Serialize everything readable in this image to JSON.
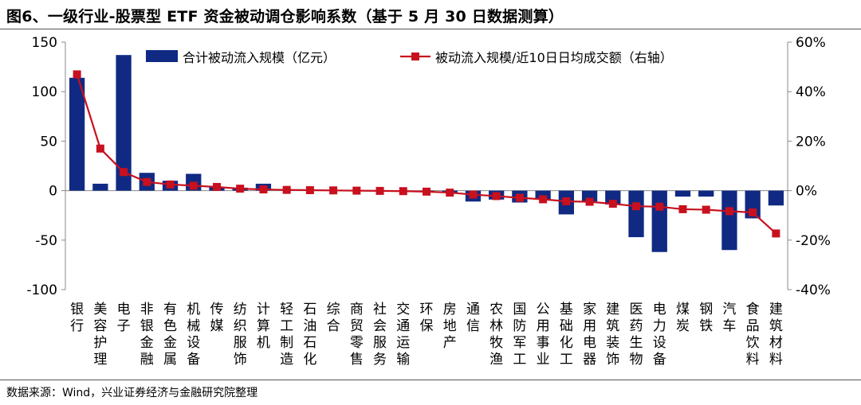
{
  "header": {
    "title": "图6、一级行业-股票型 ETF 资金被动调仓影响系数（基于 5 月 30 日数据测算）"
  },
  "footer": {
    "source": "数据来源：Wind，兴业证券经济与金融研究院整理"
  },
  "colors": {
    "bar": "#102a83",
    "line": "#c8101e",
    "axis": "#888888"
  },
  "chart_data": {
    "type": "bar",
    "categories": [
      "银行",
      "美容护理",
      "电子",
      "非银金融",
      "有色金属",
      "机械设备",
      "传媒",
      "纺织服饰",
      "计算机",
      "轻工制造",
      "石油石化",
      "综合",
      "商贸零售",
      "社会服务",
      "交通运输",
      "环保",
      "房地产",
      "通信",
      "农林牧渔",
      "国防军工",
      "公用事业",
      "基础化工",
      "家用电器",
      "建筑装饰",
      "医药生物",
      "电力设备",
      "煤炭",
      "钢铁",
      "汽车",
      "食品饮料",
      "建筑材料"
    ],
    "series": [
      {
        "name": "合计被动流入规模（亿元）",
        "type": "bar",
        "axis": "left",
        "values": [
          114,
          7,
          137,
          18,
          10,
          17,
          4,
          3,
          7,
          1,
          0.5,
          0.5,
          0.5,
          -0.5,
          -1,
          -1,
          -2,
          -11,
          -9,
          -12,
          -9,
          -24,
          -11,
          -14,
          -47,
          -62,
          -6,
          -6,
          -60,
          -28,
          -15
        ]
      },
      {
        "name": "被动流入规模/近10日日均成交额（右轴）",
        "type": "line",
        "axis": "right",
        "values": [
          0.47,
          0.17,
          0.075,
          0.035,
          0.025,
          0.02,
          0.015,
          0.008,
          0.005,
          0.003,
          0.002,
          0.001,
          0.0,
          -0.001,
          -0.002,
          -0.004,
          -0.008,
          -0.016,
          -0.022,
          -0.029,
          -0.035,
          -0.043,
          -0.045,
          -0.053,
          -0.063,
          -0.065,
          -0.075,
          -0.077,
          -0.083,
          -0.088,
          -0.173
        ]
      }
    ],
    "y_left": {
      "lim": [
        -100,
        150
      ],
      "ticks": [
        "-100",
        "-50",
        "0",
        "50",
        "100",
        "150"
      ],
      "tick_values": [
        -100,
        -50,
        0,
        50,
        100,
        150
      ]
    },
    "y_right": {
      "lim": [
        -0.4,
        0.6
      ],
      "ticks": [
        "-40%",
        "-20%",
        "0%",
        "20%",
        "40%",
        "60%"
      ],
      "tick_values": [
        -0.4,
        -0.2,
        0,
        0.2,
        0.4,
        0.6
      ]
    },
    "legend_position": "top",
    "grid": false
  }
}
